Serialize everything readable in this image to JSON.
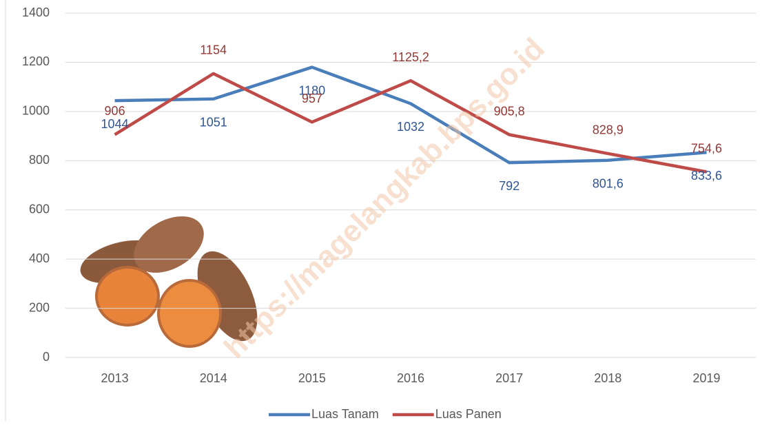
{
  "chart_data": {
    "type": "line",
    "annotation": "https://magelangkab.bps.go.id",
    "categories": [
      "2013",
      "2014",
      "2015",
      "2016",
      "2017",
      "2018",
      "2019"
    ],
    "series": [
      {
        "name": "Luas Tanam",
        "color": "#4a7ebb",
        "label_color": "#2f5597",
        "values": [
          1044,
          1051,
          1180,
          1032,
          792,
          801.6,
          833.6
        ],
        "value_labels": [
          "1044",
          "1051",
          "1180",
          "1032",
          "792",
          "801,6",
          "833,6"
        ]
      },
      {
        "name": "Luas Panen",
        "color": "#be4b48",
        "label_color": "#953735",
        "values": [
          906,
          1154,
          957,
          1125.2,
          905.8,
          828.9,
          754.6
        ],
        "value_labels": [
          "906",
          "1154",
          "957",
          "1125,2",
          "905,8",
          "828,9",
          "754,6"
        ]
      }
    ],
    "ylim": [
      0,
      1400
    ],
    "yticks": [
      0,
      200,
      400,
      600,
      800,
      1000,
      1200,
      1400
    ],
    "grid": true,
    "legend": "bottom"
  }
}
